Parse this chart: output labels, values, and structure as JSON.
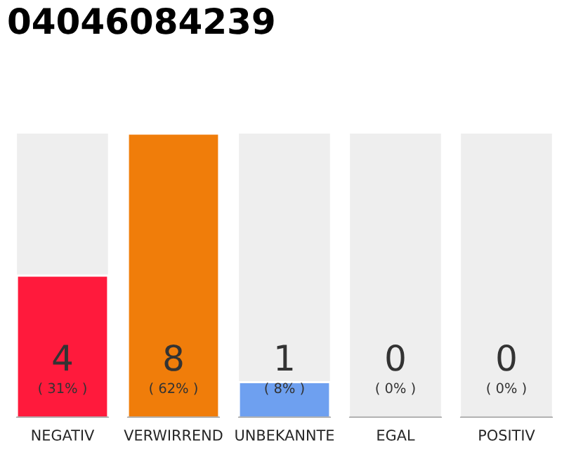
{
  "chart_data": {
    "type": "bar",
    "title": "04046084239",
    "categories": [
      "NEGATIV",
      "VERWIRREND",
      "UNBEKANNTE",
      "EGAL",
      "POSITIV"
    ],
    "values": [
      4,
      8,
      1,
      0,
      0
    ],
    "colors": [
      "#ff1a3c",
      "#f07d0a",
      "#6ea0f0",
      null,
      null
    ],
    "data_labels": true,
    "annotations": [
      "( 31% )",
      "( 62% )",
      "( 8% )",
      "( 0% )",
      "( 0% )"
    ],
    "grid": false,
    "legend": false
  }
}
